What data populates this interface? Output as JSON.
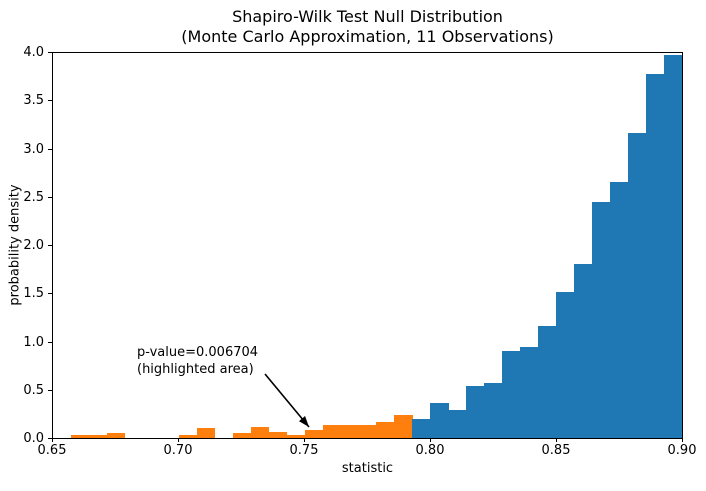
{
  "title": {
    "line1": "Shapiro-Wilk Test Null Distribution",
    "line2": "(Monte Carlo Approximation, 11 Observations)"
  },
  "axes": {
    "xlabel": "statistic",
    "ylabel": "probability density",
    "x_ticks": [
      "0.65",
      "0.70",
      "0.75",
      "0.80",
      "0.85",
      "0.90"
    ],
    "y_ticks": [
      "0.0",
      "0.5",
      "1.0",
      "1.5",
      "2.0",
      "2.5",
      "3.0",
      "3.5",
      "4.0"
    ]
  },
  "annotation": {
    "line1": "p-value=0.006704",
    "line2": "(highlighted area)"
  },
  "colors": {
    "null_distribution": "#1f77b4",
    "highlighted": "#ff7f0e",
    "annotation_arrow": "#000000",
    "text": "#000000"
  },
  "chart_data": {
    "type": "bar",
    "subtype": "histogram",
    "title": "Shapiro-Wilk Test Null Distribution\n(Monte Carlo Approximation, 11 Observations)",
    "xlabel": "statistic",
    "ylabel": "probability density",
    "xlim": [
      0.65,
      0.9
    ],
    "ylim": [
      0,
      4
    ],
    "grid": false,
    "legend": false,
    "bin_start": 0.65,
    "bin_width": 0.0071429,
    "n_bins_visible": 35,
    "heights": [
      0,
      0.03,
      0.03,
      0.05,
      0,
      0,
      0,
      0.03,
      0.1,
      0,
      0.05,
      0.11,
      0.06,
      0.03,
      0.08,
      0.14,
      0.14,
      0.14,
      0.17,
      0.24,
      0.2,
      0.36,
      0.29,
      0.54,
      0.57,
      0.9,
      0.95,
      1.16,
      1.52,
      1.81,
      2.45,
      2.66,
      3.17,
      3.78,
      3.98
    ],
    "n_highlighted": 20,
    "highlight_upper_edge": 0.7929,
    "series": [
      {
        "name": "null distribution",
        "color": "#1f77b4"
      },
      {
        "name": "highlighted area (statistic <= observed, p-value mass)",
        "color": "#ff7f0e"
      }
    ],
    "annotation": {
      "text": "p-value=0.006704\n(highlighted area)",
      "text_xy": [
        0.68,
        0.7
      ],
      "arrow_tip_xy": [
        0.752,
        0.1
      ]
    }
  }
}
